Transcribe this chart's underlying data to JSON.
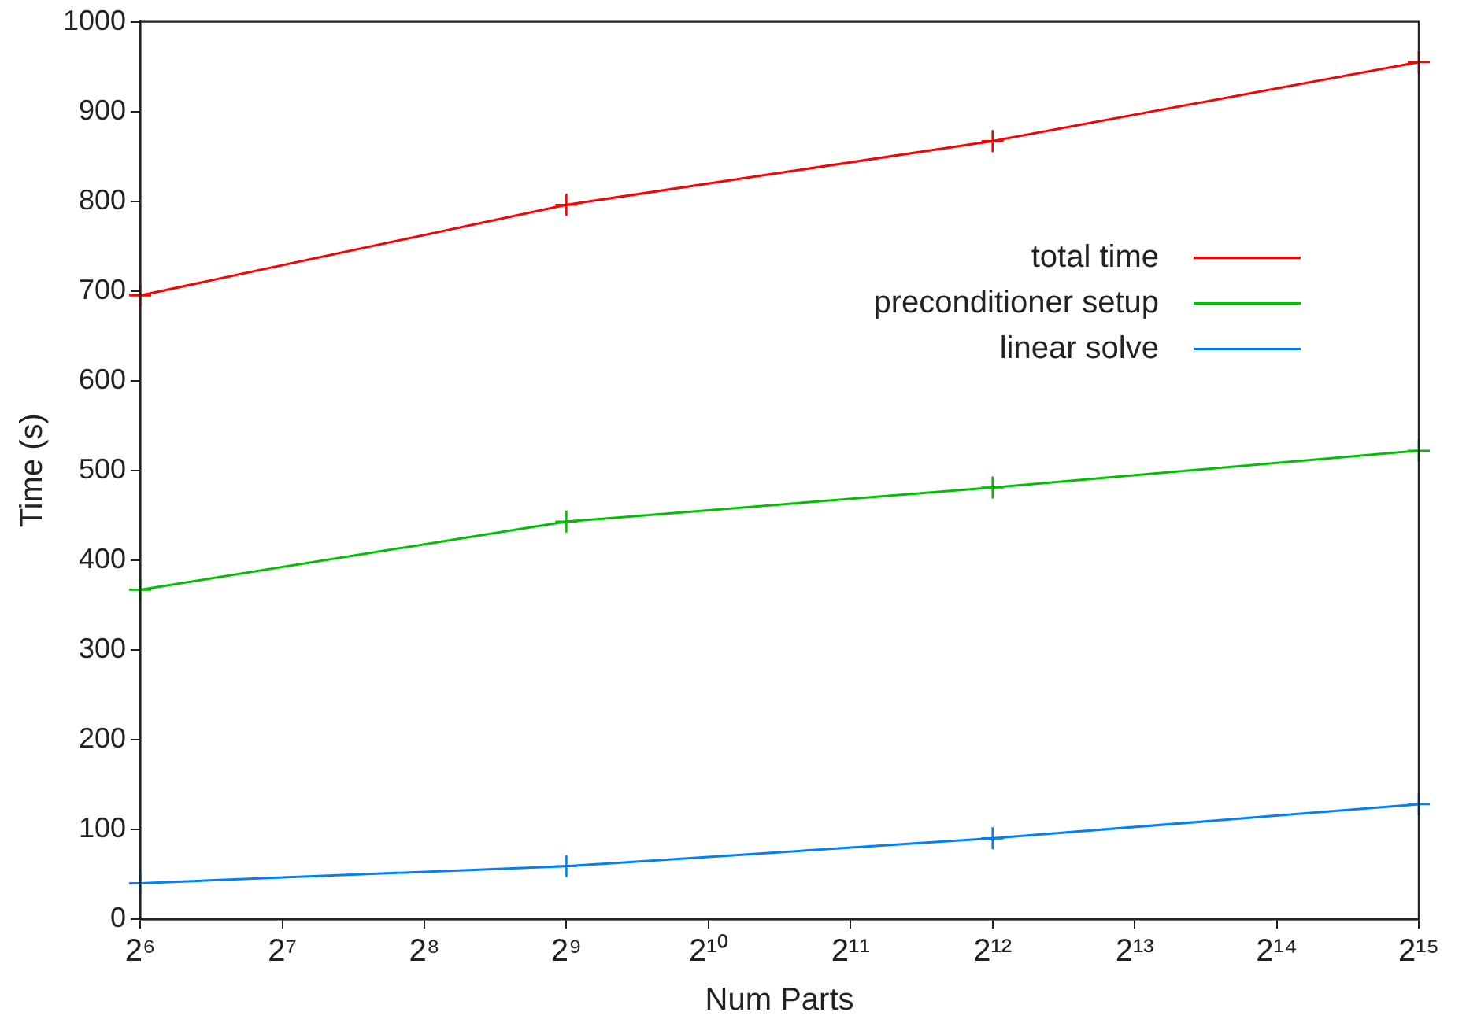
{
  "chart_data": {
    "type": "line",
    "xlabel": "Num Parts",
    "ylabel": "Time (s)",
    "log": "x",
    "x": [
      64,
      512,
      4096,
      32768
    ],
    "xlim": [
      64,
      32768
    ],
    "xticks": [
      {
        "value": 64,
        "label": "2⁶"
      },
      {
        "value": 128,
        "label": "2⁷"
      },
      {
        "value": 256,
        "label": "2⁸"
      },
      {
        "value": 512,
        "label": "2⁹"
      },
      {
        "value": 1024,
        "label": "2¹⁰"
      },
      {
        "value": 2048,
        "label": "2¹¹"
      },
      {
        "value": 4096,
        "label": "2¹²"
      },
      {
        "value": 8192,
        "label": "2¹³"
      },
      {
        "value": 16384,
        "label": "2¹⁴"
      },
      {
        "value": 32768,
        "label": "2¹⁵"
      }
    ],
    "ylim": [
      0,
      1000
    ],
    "yticks": [
      0,
      100,
      200,
      300,
      400,
      500,
      600,
      700,
      800,
      900,
      1000
    ],
    "grid": false,
    "legend": "right",
    "line_style": "solid",
    "series": [
      {
        "name": "total time",
        "color": "#ff0000",
        "marker": "cross",
        "values": [
          695,
          796,
          867,
          955
        ]
      },
      {
        "name": "preconditioner setup",
        "color": "#00c000",
        "marker": "cross",
        "values": [
          367,
          443,
          481,
          522
        ]
      },
      {
        "name": "linear solve",
        "color": "#0080ff",
        "marker": "cross",
        "values": [
          40,
          59,
          90,
          128
        ]
      }
    ]
  }
}
